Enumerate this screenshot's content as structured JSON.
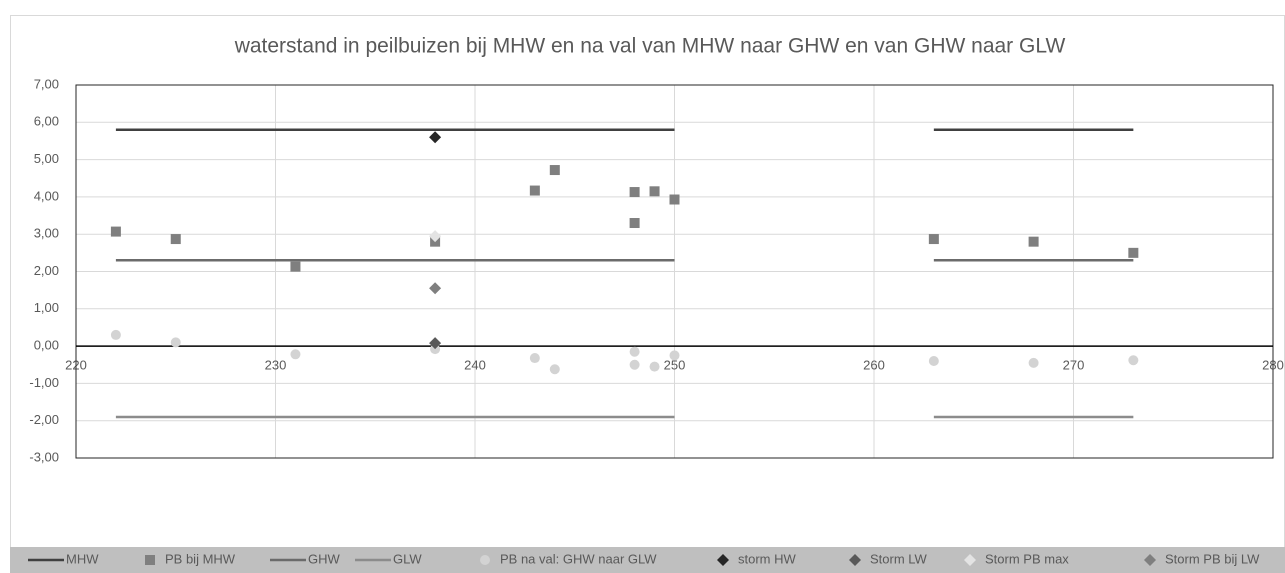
{
  "chart_data": {
    "type": "scatter",
    "title": "waterstand in peilbuizen bij MHW en na val van MHW naar GHW en van GHW naar GLW",
    "xlim": [
      220,
      280
    ],
    "xticks": [
      220,
      230,
      240,
      250,
      260,
      270,
      280
    ],
    "ylim": [
      -3,
      7
    ],
    "yticks": [
      {
        "value": -3,
        "label": "-3,00"
      },
      {
        "value": -2,
        "label": "-2,00"
      },
      {
        "value": -1,
        "label": "-1,00"
      },
      {
        "value": 0,
        "label": "0,00"
      },
      {
        "value": 1,
        "label": "1,00"
      },
      {
        "value": 2,
        "label": "2,00"
      },
      {
        "value": 3,
        "label": "3,00"
      },
      {
        "value": 4,
        "label": "4,00"
      },
      {
        "value": 5,
        "label": "5,00"
      },
      {
        "value": 6,
        "label": "6,00"
      },
      {
        "value": 7,
        "label": "7,00"
      }
    ],
    "grid": true,
    "legend": "bottom",
    "series": [
      {
        "name": "MHW",
        "marker": "line",
        "color": "#404040",
        "x": [
          222,
          250,
          null,
          263,
          273
        ],
        "values": [
          5.8,
          5.8,
          null,
          5.8,
          5.8
        ]
      },
      {
        "name": "PB bij MHW",
        "marker": "square",
        "color": "#7f7f7f",
        "x": [
          222,
          225,
          231,
          238,
          243,
          244,
          248,
          248,
          249,
          250,
          263,
          268,
          273
        ],
        "values": [
          3.07,
          2.87,
          2.13,
          2.8,
          4.17,
          4.72,
          4.13,
          3.3,
          4.15,
          3.93,
          2.87,
          2.8,
          2.5
        ]
      },
      {
        "name": "GHW",
        "marker": "line",
        "color": "#6b6b6b",
        "x": [
          222,
          250,
          null,
          263,
          273
        ],
        "values": [
          2.3,
          2.3,
          null,
          2.3,
          2.3
        ]
      },
      {
        "name": "GLW",
        "marker": "line",
        "color": "#8c8c8c",
        "x": [
          222,
          250,
          null,
          263,
          273
        ],
        "values": [
          -1.9,
          -1.9,
          null,
          -1.9,
          -1.9
        ]
      },
      {
        "name": "PB na val: GHW naar GLW",
        "marker": "circle",
        "color": "#d3d3d3",
        "x": [
          222,
          225,
          231,
          238,
          243,
          244,
          248,
          248,
          249,
          250,
          263,
          268,
          273
        ],
        "values": [
          0.3,
          0.1,
          -0.22,
          -0.08,
          -0.32,
          -0.62,
          -0.15,
          -0.5,
          -0.55,
          -0.25,
          -0.4,
          -0.45,
          -0.38
        ]
      },
      {
        "name": "storm HW",
        "marker": "diamond",
        "color": "#262626",
        "x": [
          238
        ],
        "values": [
          5.6
        ]
      },
      {
        "name": "Storm LW",
        "marker": "diamond",
        "color": "#595959",
        "x": [
          238
        ],
        "values": [
          0.08
        ]
      },
      {
        "name": "Storm PB max",
        "marker": "diamond",
        "color": "#e3e3e3",
        "x": [
          238
        ],
        "values": [
          2.95
        ]
      },
      {
        "name": "Storm PB  bij LW",
        "marker": "diamond",
        "color": "#7f7f7f",
        "x": [
          238
        ],
        "values": [
          1.55
        ]
      }
    ]
  }
}
